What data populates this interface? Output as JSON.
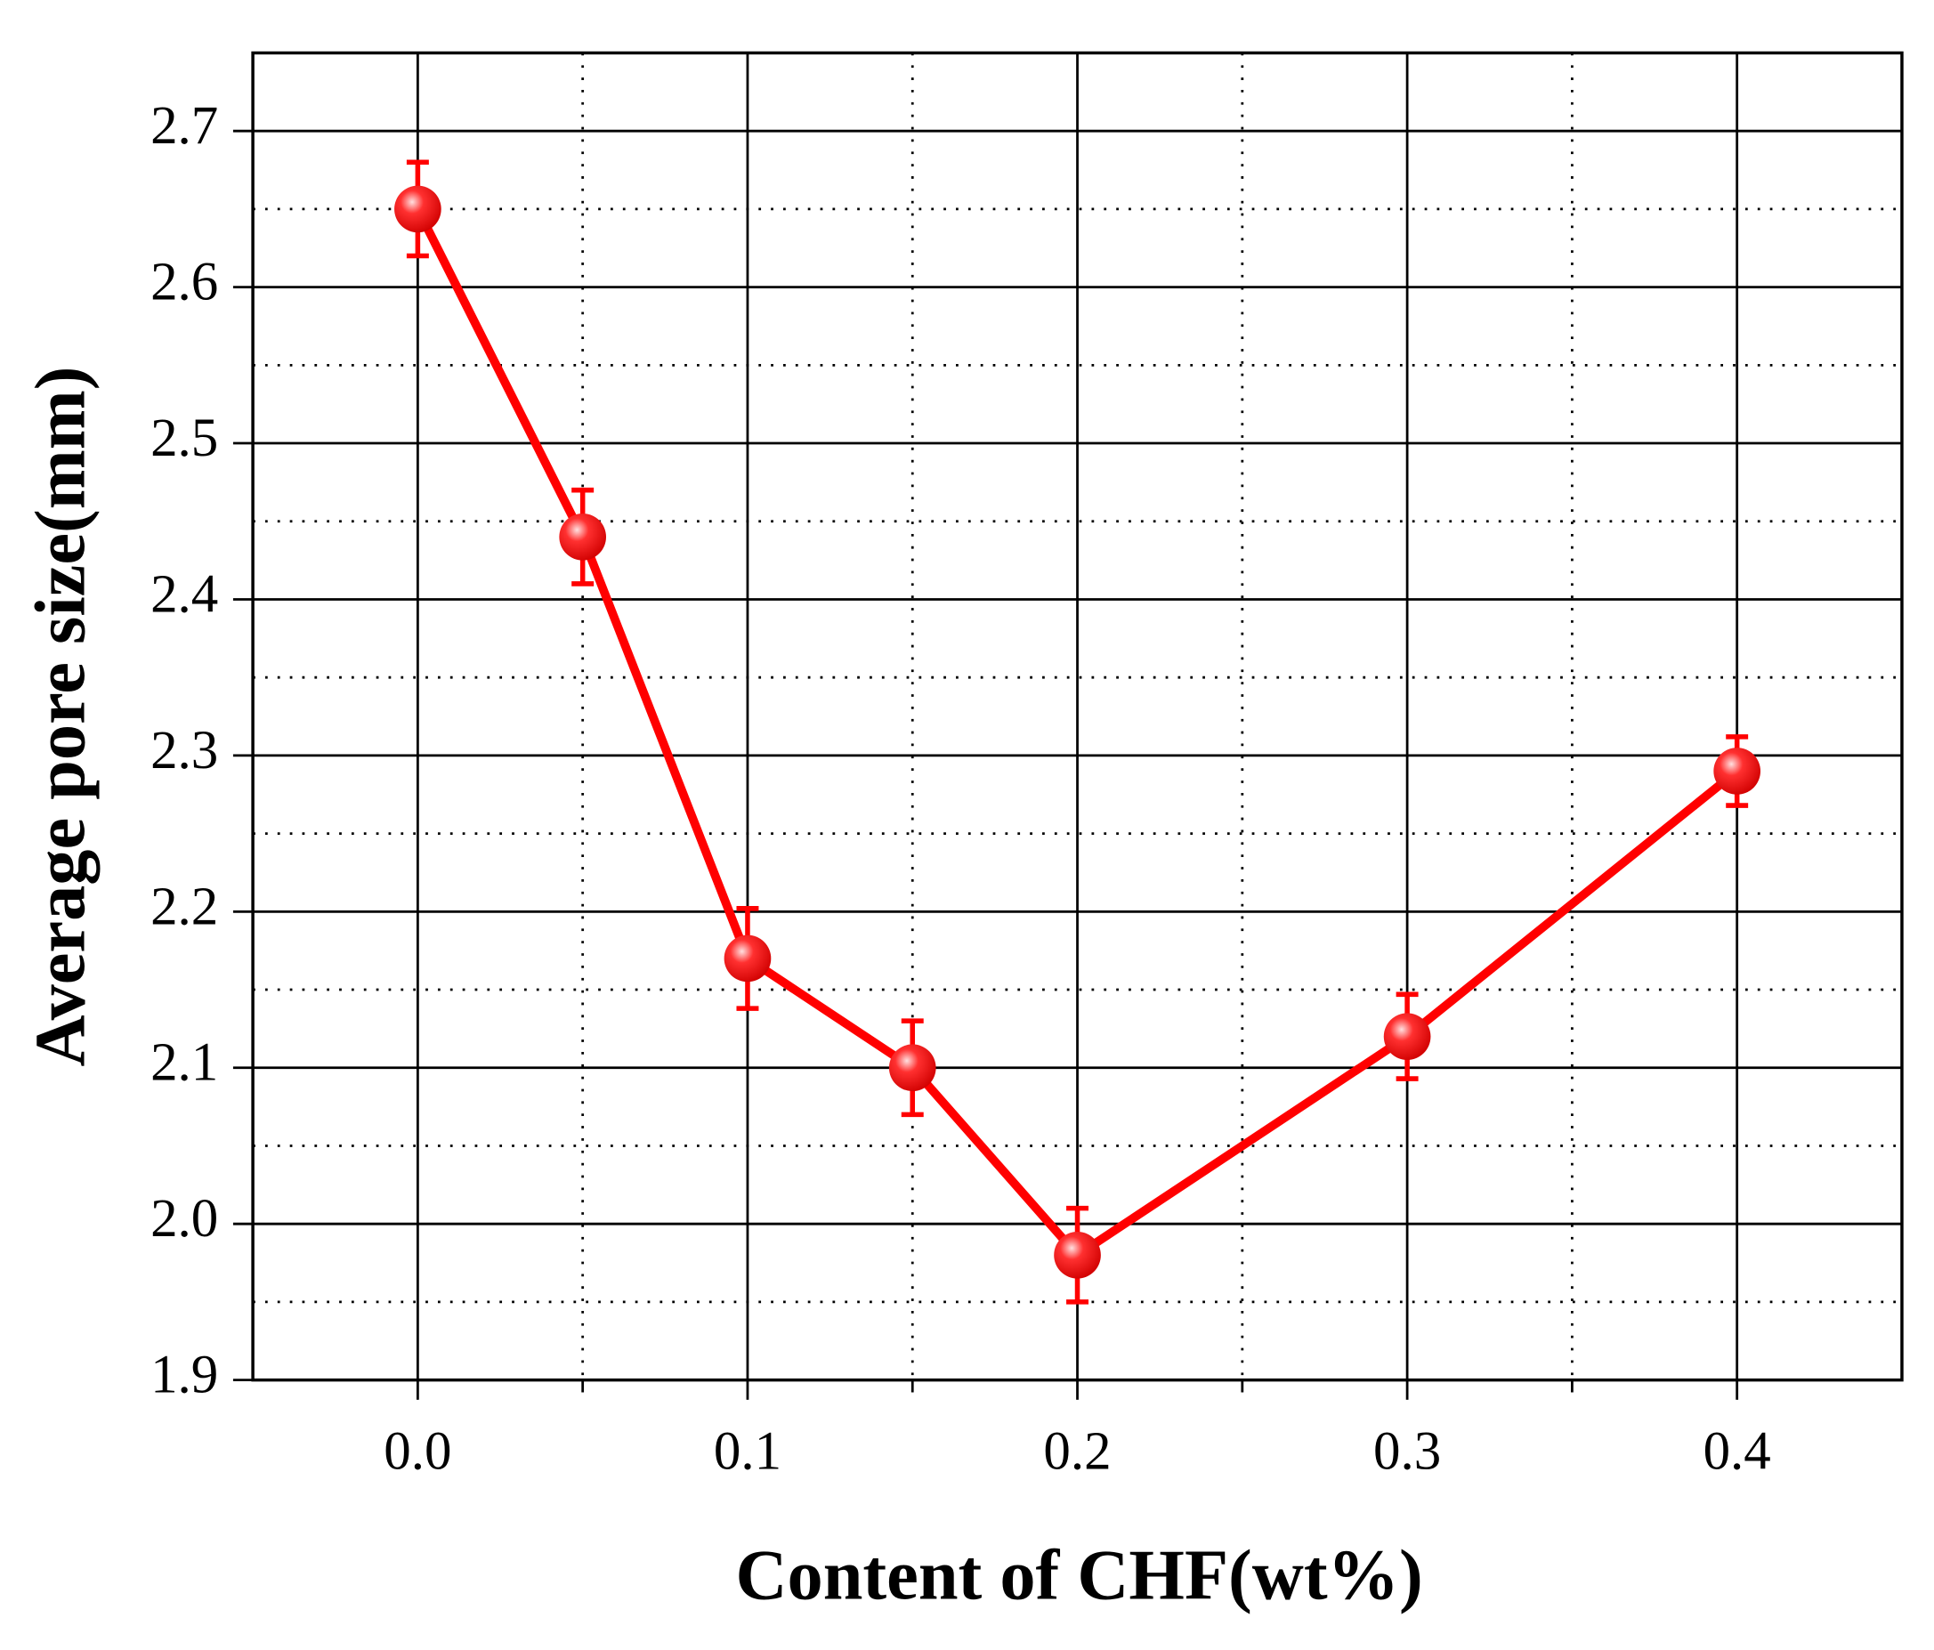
{
  "chart_data": {
    "type": "line",
    "x_label": "Content of CHF(wt%)",
    "y_label": "Average pore size(mm)",
    "series": [
      {
        "color": "#ff0000",
        "x": [
          0,
          0.05,
          0.1,
          0.15,
          0.2,
          0.3,
          0.4
        ],
        "values": [
          2.65,
          2.44,
          2.17,
          2.1,
          1.98,
          2.12,
          2.29
        ],
        "errors": [
          0.03,
          0.03,
          0.032,
          0.03,
          0.03,
          0.027,
          0.022
        ]
      }
    ],
    "xlim": [
      -0.05,
      0.45
    ],
    "xticks": [
      {
        "value": 0,
        "label": "0.0"
      },
      0.1,
      0.2,
      0.3,
      0.4
    ],
    "minor_xticks": [
      0.05,
      0.15,
      0.25,
      0.35
    ],
    "ylim": [
      1.9,
      2.75
    ],
    "yticks": [
      1.9,
      {
        "value": 2,
        "label": "2.0"
      },
      2.1,
      2.2,
      2.3,
      2.4,
      2.5,
      2.6,
      2.7
    ],
    "minor_yticks": [
      1.95,
      2.05,
      2.15,
      2.25,
      2.35,
      2.45,
      2.55,
      2.65
    ],
    "grid": true
  }
}
